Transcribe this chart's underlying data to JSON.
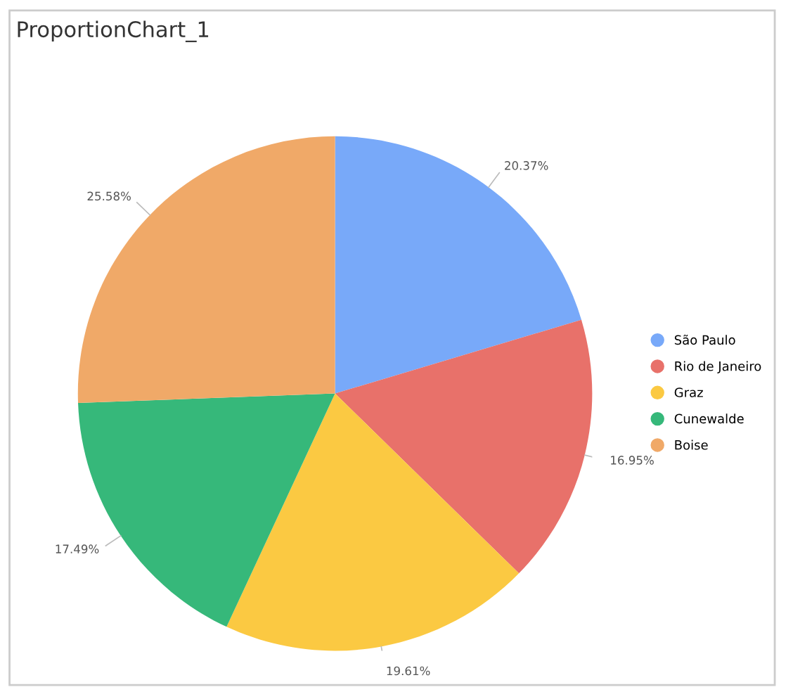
{
  "chart_data": {
    "type": "pie",
    "title": "ProportionChart_1",
    "categories": [
      "São Paulo",
      "Rio de Janeiro",
      "Graz",
      "Cunewalde",
      "Boise"
    ],
    "values": [
      20.37,
      16.95,
      19.61,
      17.49,
      25.58
    ],
    "colors": [
      "#78a9f9",
      "#e8716a",
      "#fbc942",
      "#36b87a",
      "#f0a968"
    ],
    "value_labels": [
      "20.37%",
      "16.95%",
      "19.61%",
      "17.49%",
      "25.58%"
    ],
    "legend": "right"
  }
}
